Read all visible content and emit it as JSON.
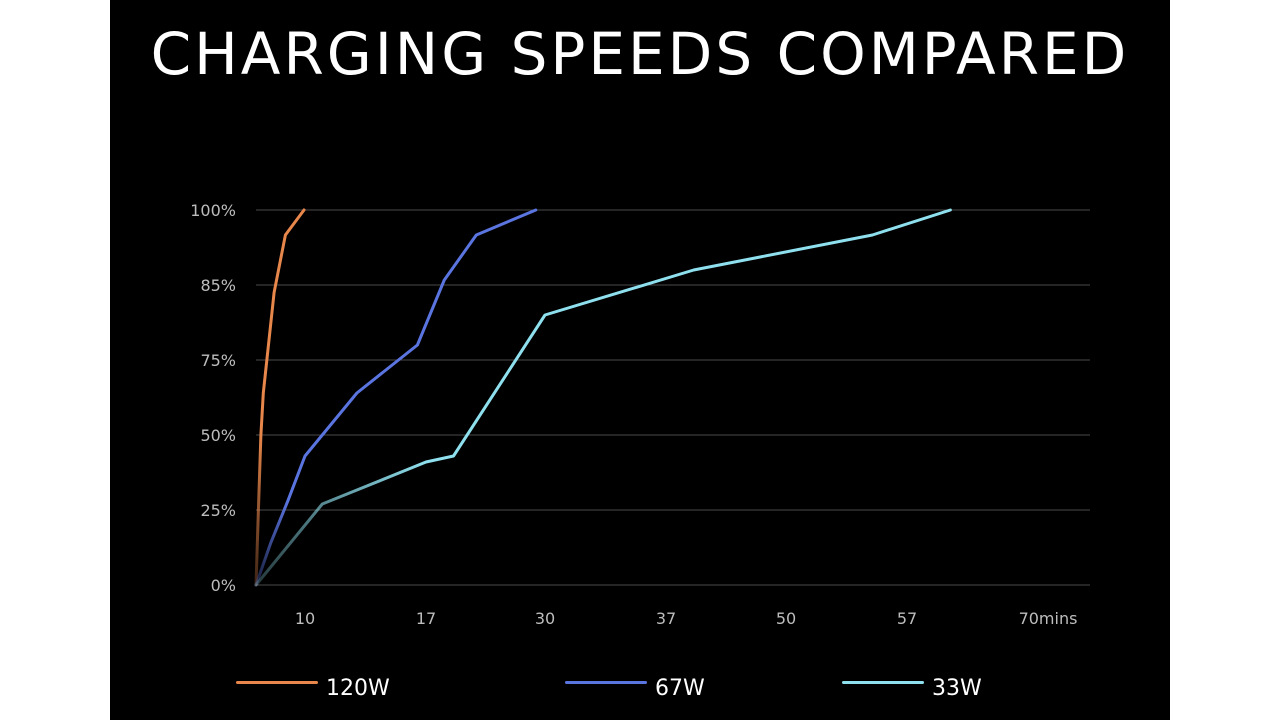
{
  "title": "CHARGING SPEEDS COMPARED",
  "colors": {
    "background": "#000000",
    "gridline": "#4a4a4a",
    "tick_text": "#bdbdbd",
    "title": "#ffffff"
  },
  "chart_data": {
    "type": "line",
    "title": "CHARGING SPEEDS COMPARED",
    "xlabel": "",
    "ylabel": "",
    "x_ticks": [
      "10",
      "17",
      "30",
      "37",
      "50",
      "57",
      "70mins"
    ],
    "y_ticks": [
      "0%",
      "25%",
      "50%",
      "75%",
      "85%",
      "100%"
    ],
    "grid": true,
    "legend_position": "bottom",
    "series": [
      {
        "name": "120W",
        "color": "#e8874b",
        "points": [
          [
            0,
            0
          ],
          [
            0.5,
            25
          ],
          [
            1.0,
            50
          ],
          [
            1.5,
            64
          ],
          [
            3.7,
            84
          ],
          [
            6.0,
            95
          ],
          [
            9.8,
            100
          ]
        ]
      },
      {
        "name": "67W",
        "color": "#5a74e0",
        "points": [
          [
            0,
            0
          ],
          [
            3.0,
            14
          ],
          [
            6.5,
            28
          ],
          [
            10.0,
            43
          ],
          [
            13.0,
            64
          ],
          [
            16.5,
            77
          ],
          [
            19.0,
            86
          ],
          [
            22.5,
            95
          ],
          [
            29.0,
            100
          ]
        ]
      },
      {
        "name": "33W",
        "color": "#8fe0ee",
        "points": [
          [
            0,
            0
          ],
          [
            11.0,
            27
          ],
          [
            17.0,
            41
          ],
          [
            20.0,
            43
          ],
          [
            30.0,
            81
          ],
          [
            40.0,
            88
          ],
          [
            55.0,
            95
          ],
          [
            61.0,
            100
          ]
        ]
      }
    ]
  }
}
